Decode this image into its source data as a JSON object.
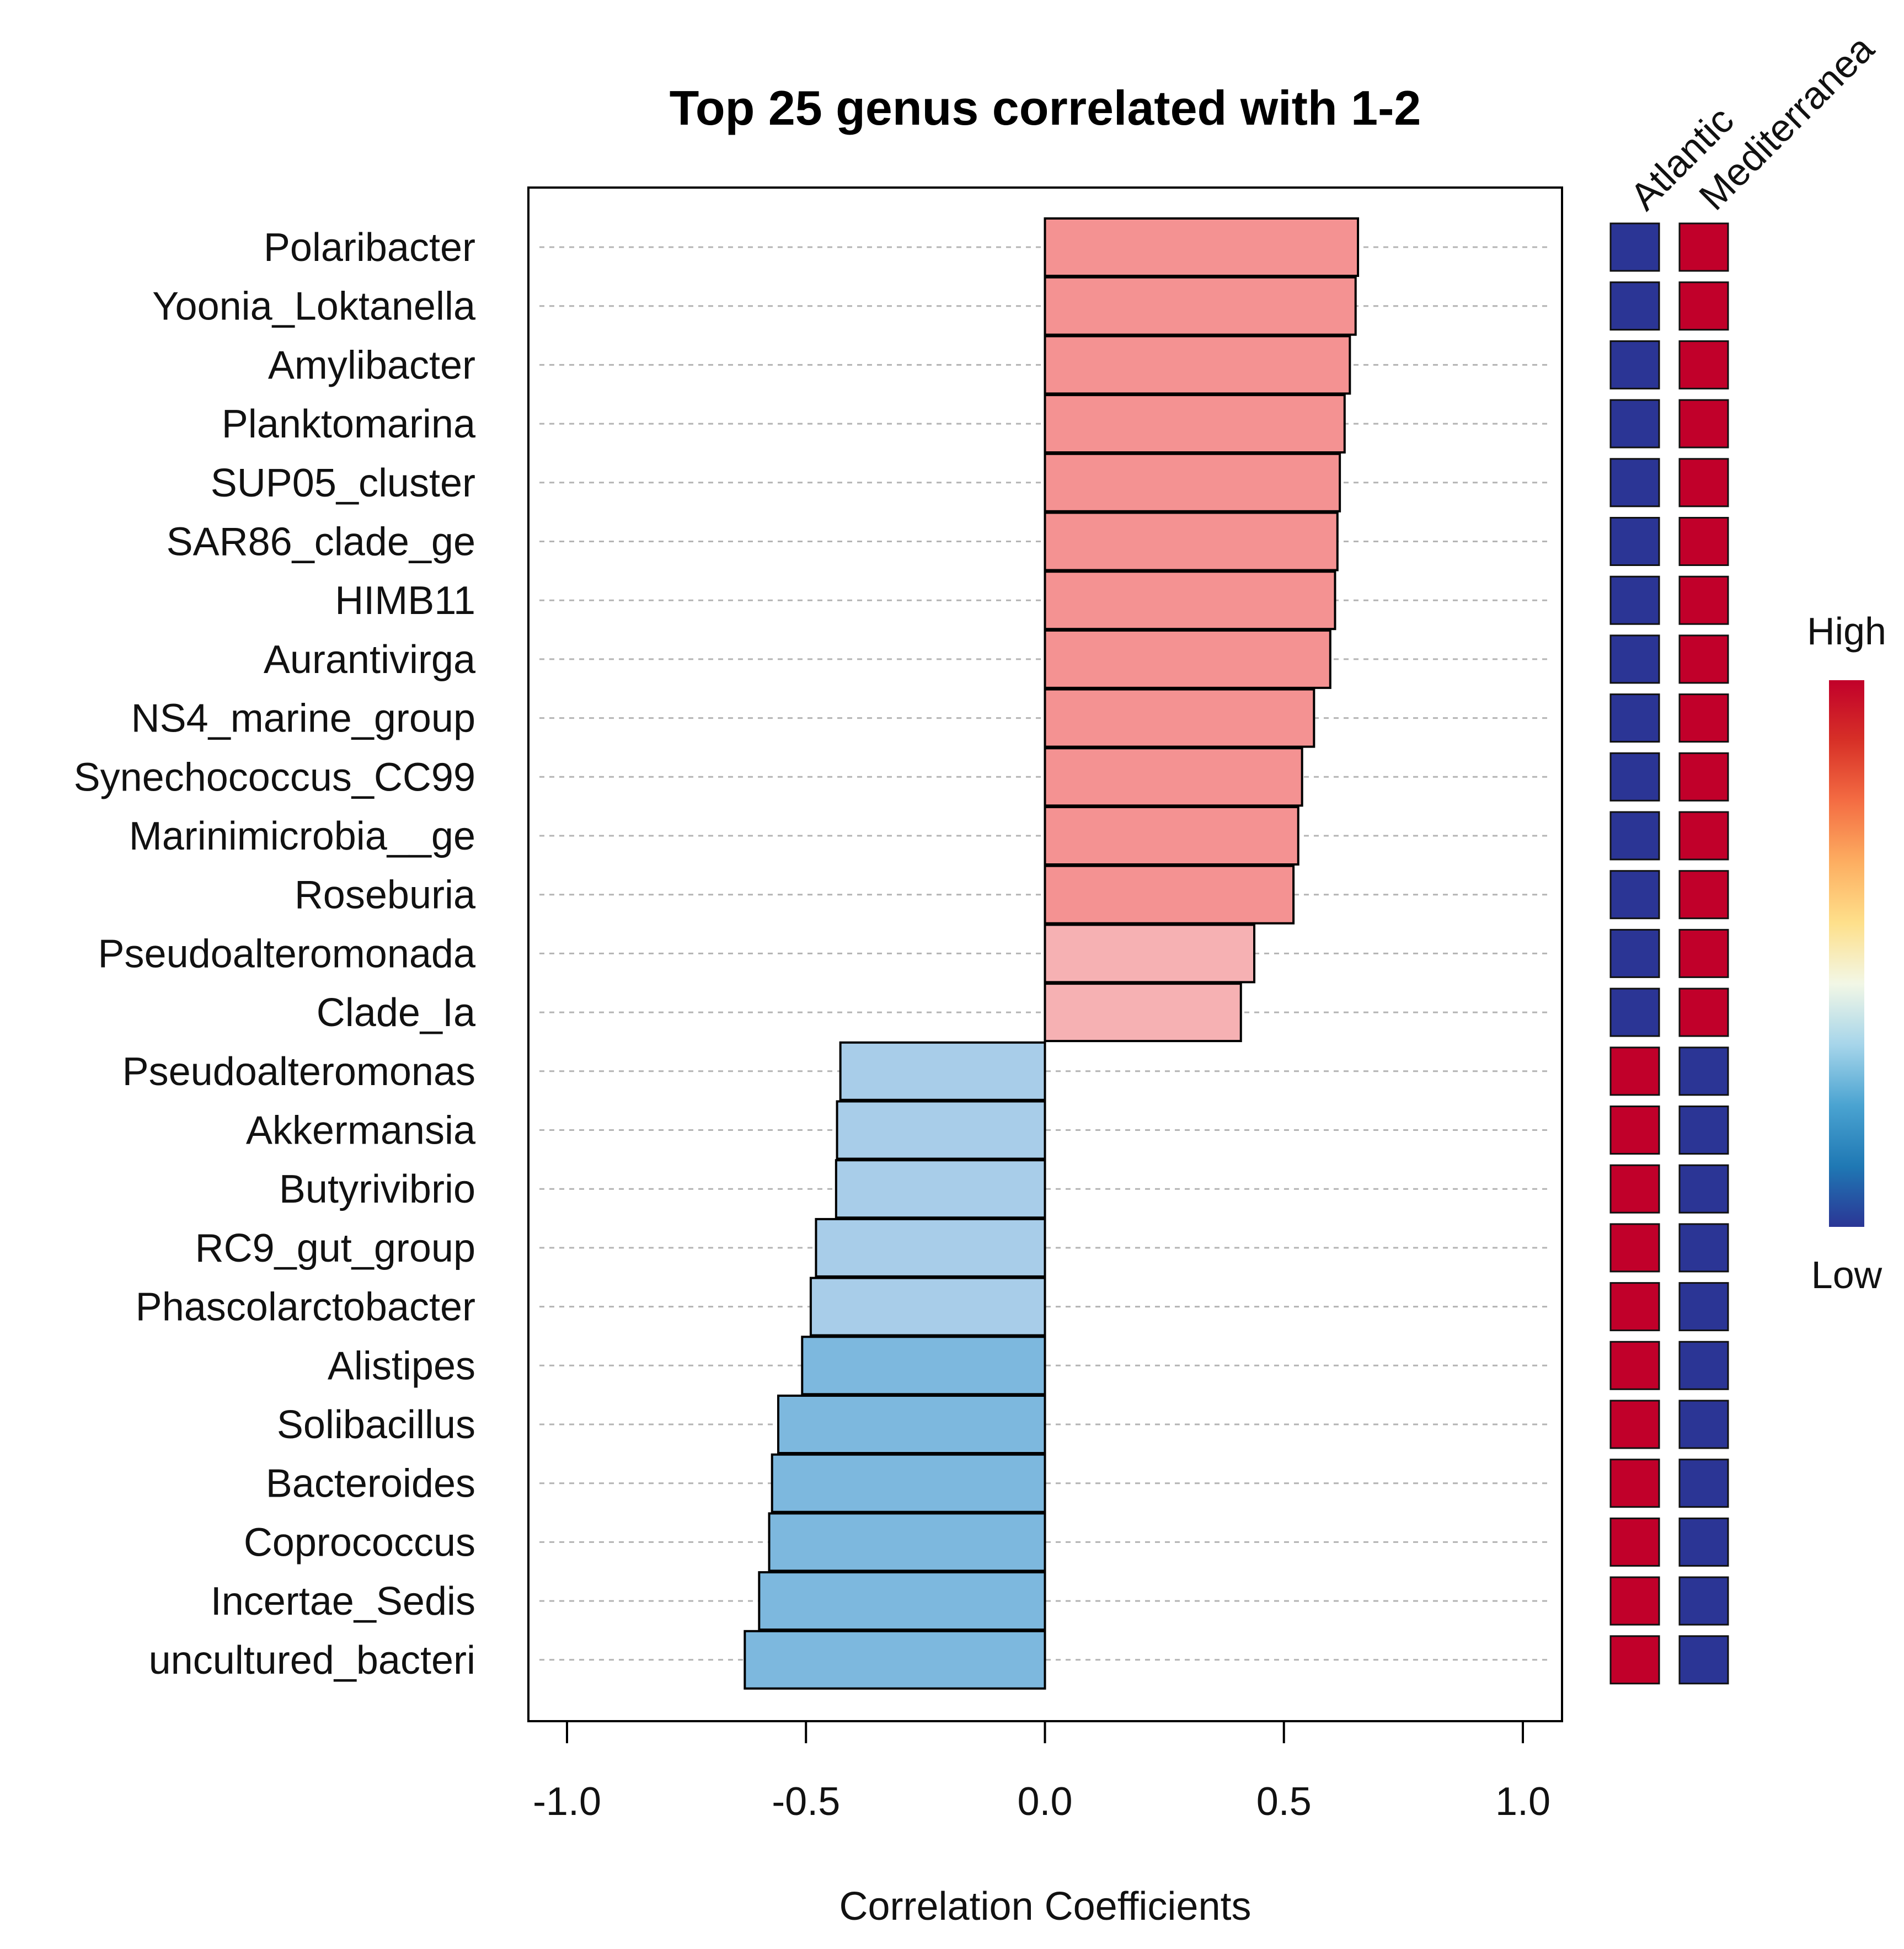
{
  "chart_data": {
    "type": "bar",
    "orientation": "horizontal",
    "title": "Top 25 genus correlated with 1-2",
    "xlabel": "Correlation Coefficients",
    "ylabel": "",
    "xlim": [
      -1.0,
      1.0
    ],
    "xticks": [
      "-1.0",
      "-0.5",
      "0.0",
      "0.5",
      "1.0"
    ],
    "grid": "dashed horizontal per row",
    "categories": [
      "Polaribacter",
      "Yoonia_Loktanella",
      "Amylibacter",
      "Planktomarina",
      "SUP05_cluster",
      "SAR86_clade_ge",
      "HIMB11",
      "Aurantivirga",
      "NS4_marine_group",
      "Synechococcus_CC99",
      "Marinimicrobia__ge",
      "Roseburia",
      "Pseudoalteromonada",
      "Clade_Ia",
      "Pseudoalteromonas",
      "Akkermansia",
      "Butyrivibrio",
      "RC9_gut_group",
      "Phascolarctobacter",
      "Alistipes",
      "Solibacillus",
      "Bacteroides",
      "Coprococcus",
      "Incertae_Sedis",
      "uncultured_bacteri"
    ],
    "values": [
      0.655,
      0.65,
      0.638,
      0.627,
      0.617,
      0.612,
      0.607,
      0.597,
      0.563,
      0.538,
      0.53,
      0.52,
      0.438,
      0.41,
      -0.428,
      -0.435,
      -0.437,
      -0.479,
      -0.49,
      -0.508,
      -0.558,
      -0.571,
      -0.577,
      -0.598,
      -0.628
    ],
    "bar_colors": [
      "#f49292",
      "#f49292",
      "#f49292",
      "#f49292",
      "#f49292",
      "#f49292",
      "#f49292",
      "#f49292",
      "#f49292",
      "#f49292",
      "#f49292",
      "#f49292",
      "#f6b1b3",
      "#f6b1b3",
      "#a8cde9",
      "#a8cde9",
      "#a8cde9",
      "#a8cde9",
      "#a8cde9",
      "#7db8de",
      "#7db8de",
      "#7db8de",
      "#7db8de",
      "#7db8de",
      "#7db8de"
    ],
    "heatmap": {
      "groups": [
        "Atlantic",
        "Mediterranea"
      ],
      "levels": [
        [
          "low",
          "high"
        ],
        [
          "low",
          "high"
        ],
        [
          "low",
          "high"
        ],
        [
          "low",
          "high"
        ],
        [
          "low",
          "high"
        ],
        [
          "low",
          "high"
        ],
        [
          "low",
          "high"
        ],
        [
          "low",
          "high"
        ],
        [
          "low",
          "high"
        ],
        [
          "low",
          "high"
        ],
        [
          "low",
          "high"
        ],
        [
          "low",
          "high"
        ],
        [
          "low",
          "high"
        ],
        [
          "low",
          "high"
        ],
        [
          "high",
          "low"
        ],
        [
          "high",
          "low"
        ],
        [
          "high",
          "low"
        ],
        [
          "high",
          "low"
        ],
        [
          "high",
          "low"
        ],
        [
          "high",
          "low"
        ],
        [
          "high",
          "low"
        ],
        [
          "high",
          "low"
        ],
        [
          "high",
          "low"
        ],
        [
          "high",
          "low"
        ],
        [
          "high",
          "low"
        ]
      ],
      "colors": {
        "high": "#c1002a",
        "low": "#2b3595"
      }
    },
    "legend": {
      "high_label": "High",
      "low_label": "Low",
      "placement": "right",
      "gradient": [
        "#2b3595",
        "#1f78b4",
        "#4aa3d1",
        "#a6d5ea",
        "#f2f7e6",
        "#fee08b",
        "#fdae61",
        "#f46d43",
        "#d73027",
        "#c1002a"
      ]
    }
  }
}
